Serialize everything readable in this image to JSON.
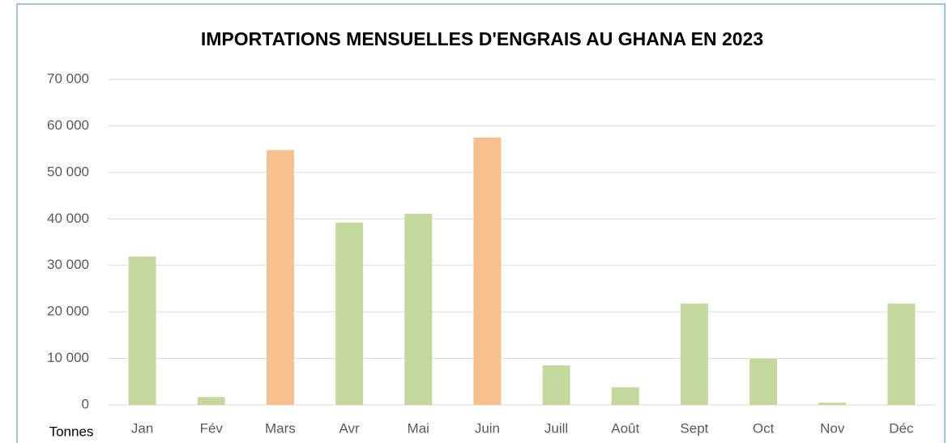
{
  "chart_data": {
    "type": "bar",
    "title": "IMPORTATIONS MENSUELLES D'ENGRAIS AU GHANA EN 2023",
    "y_label": "Tonnes",
    "categories": [
      "Jan",
      "Fév",
      "Mars",
      "Avr",
      "Mai",
      "Juin",
      "Juill",
      "Août",
      "Sept",
      "Oct",
      "Nov",
      "Déc"
    ],
    "values": [
      31900,
      1700,
      54800,
      39200,
      41100,
      57500,
      8500,
      3800,
      21800,
      9900,
      500,
      21800
    ],
    "colors": [
      "#c5d89c",
      "#c5d89c",
      "#f9c08f",
      "#c5d89c",
      "#c5d89c",
      "#f9c08f",
      "#c5d89c",
      "#c5d89c",
      "#c5d89c",
      "#c5d89c",
      "#c5d89c",
      "#c5d89c"
    ],
    "ylim": [
      0,
      70000
    ],
    "yticks": [
      0,
      {
        "value": 10000,
        "label": "10 000"
      },
      {
        "value": 20000,
        "label": "20 000"
      },
      {
        "value": 30000,
        "label": "30 000"
      },
      {
        "value": 40000,
        "label": "40 000"
      },
      {
        "value": 50000,
        "label": "50 000"
      },
      {
        "value": 60000,
        "label": "60 000"
      },
      {
        "value": 70000,
        "label": "70 000"
      }
    ],
    "grid": true
  }
}
